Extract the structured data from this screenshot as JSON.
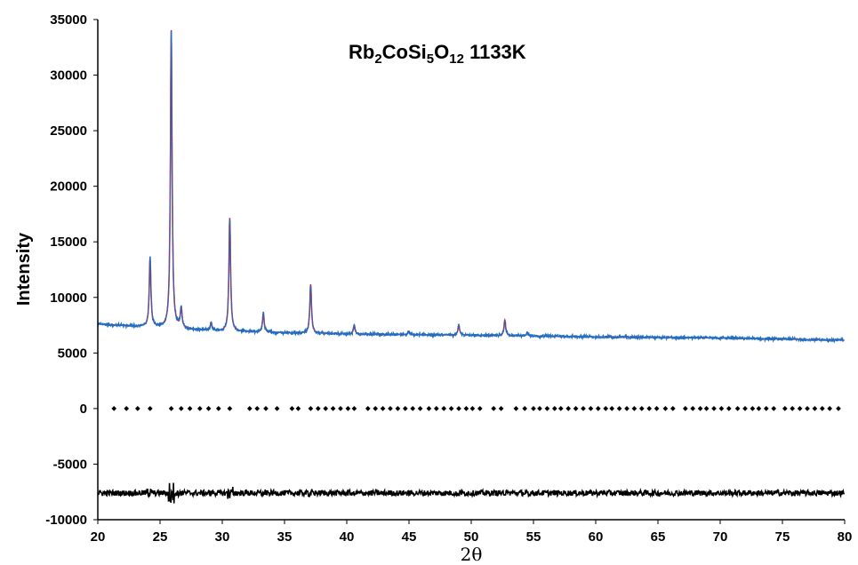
{
  "chart_data": {
    "type": "scatter",
    "title": {
      "parts": [
        {
          "text": "Rb",
          "sub": false
        },
        {
          "text": "2",
          "sub": true
        },
        {
          "text": "CoSi",
          "sub": false
        },
        {
          "text": "5",
          "sub": true
        },
        {
          "text": "O",
          "sub": false
        },
        {
          "text": "12",
          "sub": true
        },
        {
          "text": " 1133K",
          "sub": false
        }
      ]
    },
    "xlabel": "2θ",
    "ylabel": "Intensity",
    "xlim": [
      20,
      80
    ],
    "ylim": [
      -10000,
      35000
    ],
    "x_ticks": [
      "20",
      "25",
      "30",
      "35",
      "40",
      "45",
      "50",
      "55",
      "60",
      "65",
      "70",
      "75",
      "80"
    ],
    "y_ticks": [
      "-10000",
      "-5000",
      "0",
      "5000",
      "10000",
      "15000",
      "20000",
      "25000",
      "30000",
      "35000"
    ],
    "grid": false,
    "legend": "none",
    "colors": {
      "observed": "#1f6fc5",
      "calculated": "#e8101a",
      "difference": "#000000",
      "reflections": "#000000"
    },
    "series": [
      {
        "role": "observed",
        "style": "dots",
        "background": {
          "x": [
            20,
            30,
            40,
            50,
            60,
            70,
            80
          ],
          "y": [
            7600,
            6950,
            6700,
            6600,
            6450,
            6350,
            6150
          ]
        },
        "peaks": [
          {
            "x": 24.2,
            "height": 6200
          },
          {
            "x": 25.9,
            "height": 26800
          },
          {
            "x": 26.7,
            "height": 1800
          },
          {
            "x": 29.1,
            "height": 700
          },
          {
            "x": 30.6,
            "height": 10200
          },
          {
            "x": 33.3,
            "height": 1700
          },
          {
            "x": 37.1,
            "height": 4400
          },
          {
            "x": 40.6,
            "height": 800
          },
          {
            "x": 45.0,
            "height": 300
          },
          {
            "x": 49.0,
            "height": 900
          },
          {
            "x": 52.7,
            "height": 1400
          },
          {
            "x": 54.5,
            "height": 300
          }
        ]
      },
      {
        "role": "calculated",
        "style": "line",
        "follows": "observed"
      },
      {
        "role": "difference",
        "style": "line",
        "offset": -7600
      },
      {
        "role": "reflections",
        "style": "markers",
        "y": 0,
        "x": [
          21.3,
          22.3,
          23.2,
          24.2,
          25.9,
          26.7,
          27.4,
          28.2,
          28.9,
          29.7,
          30.6,
          32.2,
          32.8,
          33.5,
          34.4,
          35.6,
          36.1,
          37.1,
          37.7,
          38.3,
          38.9,
          39.5,
          40.1,
          40.6,
          41.7,
          42.3,
          42.9,
          43.5,
          44.1,
          44.7,
          45.3,
          45.9,
          46.6,
          47.2,
          47.8,
          48.4,
          49.0,
          49.6,
          50.1,
          50.7,
          51.8,
          52.4,
          53.6,
          54.3,
          55.0,
          55.5,
          56.1,
          56.7,
          57.2,
          57.8,
          58.4,
          59.0,
          59.6,
          60.2,
          60.8,
          61.3,
          61.9,
          62.5,
          63.1,
          63.7,
          64.3,
          64.9,
          65.6,
          66.2,
          67.2,
          67.8,
          68.4,
          68.9,
          69.5,
          70.1,
          70.7,
          71.4,
          72.0,
          72.6,
          73.1,
          73.7,
          74.3,
          75.2,
          75.8,
          76.4,
          77.0,
          77.6,
          78.2,
          78.8,
          79.5
        ]
      }
    ]
  }
}
